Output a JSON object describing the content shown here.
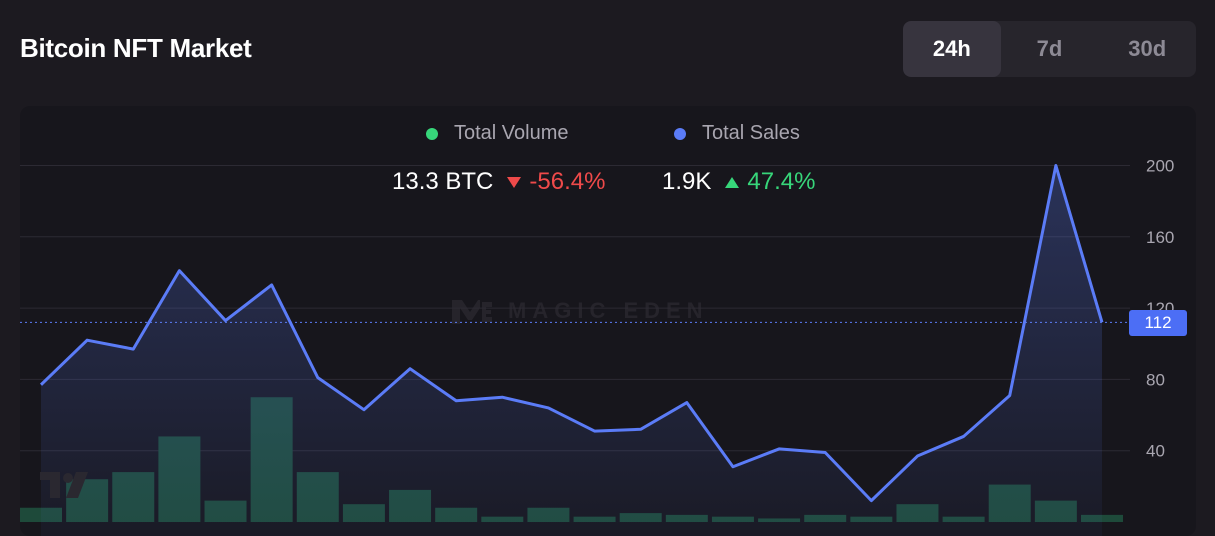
{
  "header": {
    "title": "Bitcoin NFT Market",
    "ranges": [
      {
        "label": "24h",
        "active": true
      },
      {
        "label": "7d",
        "active": false
      },
      {
        "label": "30d",
        "active": false
      }
    ]
  },
  "legend": {
    "volume": {
      "label": "Total Volume",
      "value": "13.3 BTC",
      "change": "-56.4%",
      "direction": "down",
      "color": "#37d67a"
    },
    "sales": {
      "label": "Total Sales",
      "value": "1.9K",
      "change": "47.4%",
      "direction": "up",
      "color": "#5b7cf7"
    }
  },
  "watermark": "MAGIC EDEN",
  "current_price_label": "112",
  "chart_data": {
    "type": "line",
    "title": "",
    "xlabel": "",
    "ylabel": "",
    "ylim": [
      0,
      210
    ],
    "yticks": [
      40,
      80,
      120,
      160,
      200
    ],
    "grid": true,
    "legend_position": "top-center",
    "current_value": 112,
    "series": [
      {
        "name": "Total Sales",
        "type": "line",
        "color": "#5b7cf7",
        "values": [
          77,
          102,
          97,
          141,
          113,
          133,
          81,
          63,
          86,
          68,
          70,
          64,
          51,
          52,
          67,
          31,
          41,
          39,
          12,
          37,
          48,
          71,
          200,
          112
        ]
      },
      {
        "name": "Total Volume",
        "type": "bar",
        "color": "#1e4a3a",
        "values": [
          8,
          24,
          28,
          48,
          12,
          70,
          28,
          10,
          18,
          8,
          3,
          8,
          3,
          5,
          4,
          3,
          2,
          4,
          3,
          10,
          3,
          21,
          12,
          4
        ]
      }
    ]
  }
}
